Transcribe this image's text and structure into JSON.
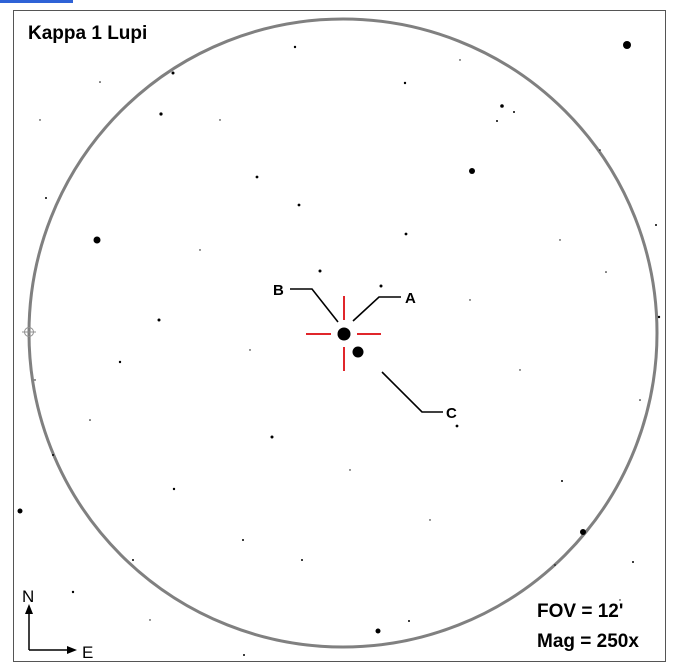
{
  "title": "Kappa 1 Lupi",
  "fov_label": "FOV = 12'",
  "mag_label": "Mag = 250x",
  "compass": {
    "north": "N",
    "east": "E"
  },
  "components": [
    {
      "id": "star-a",
      "label": "A"
    },
    {
      "id": "star-b",
      "label": "B"
    },
    {
      "id": "star-c",
      "label": "C"
    }
  ],
  "colors": {
    "background": "#ffffff",
    "circle": "#808080",
    "crosshair": "#e0262b",
    "link_bar": "#2f62d6"
  }
}
